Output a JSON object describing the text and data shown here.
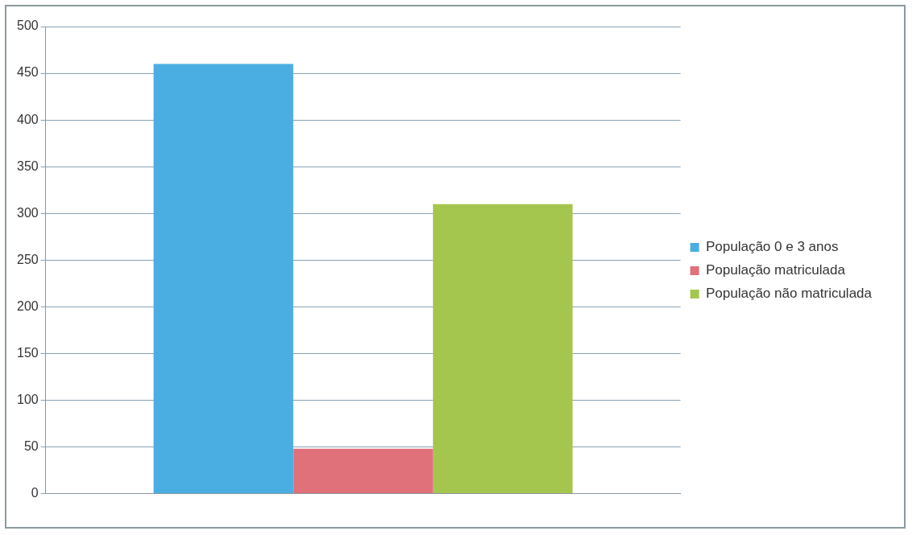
{
  "chart_data": {
    "type": "bar",
    "categories": [
      null
    ],
    "series": [
      {
        "name": "População 0 e 3 anos",
        "color": "#4aaee2",
        "values": [
          460
        ]
      },
      {
        "name": "População matriculada",
        "color": "#e0707a",
        "values": [
          48
        ]
      },
      {
        "name": "População não matriculada",
        "color": "#a5c64e",
        "values": [
          310
        ]
      }
    ],
    "ylim": [
      0,
      500
    ],
    "yticks": [
      0,
      50,
      100,
      150,
      200,
      250,
      300,
      350,
      400,
      450,
      500
    ],
    "grid": "y",
    "legend": "right"
  }
}
